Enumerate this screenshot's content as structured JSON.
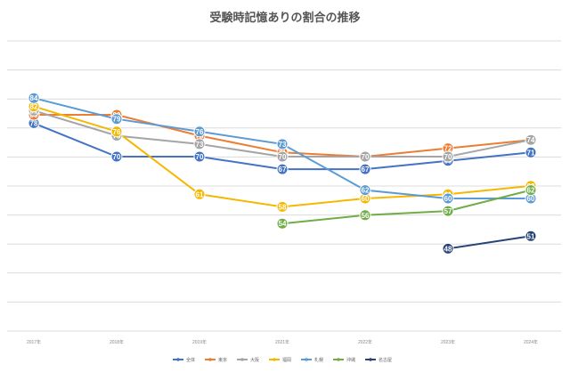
{
  "chart_data": {
    "type": "line",
    "title": "受験時記憶ありの割合の推移",
    "categories": [
      "2017年",
      "2018年",
      "2019年",
      "2021年",
      "2022年",
      "2023年",
      "2024年"
    ],
    "ylim": [
      0,
      100
    ],
    "grid": true,
    "legend_position": "bottom",
    "series": [
      {
        "name": "全体",
        "color": "#4472c4",
        "values": [
          78,
          70,
          70,
          67,
          67,
          69,
          71
        ],
        "labels": [
          "78",
          "70",
          "70",
          "67",
          "67",
          "69",
          "71"
        ]
      },
      {
        "name": "東京",
        "color": "#ed7d31",
        "values": [
          80,
          80,
          75,
          71,
          70,
          72,
          74
        ],
        "labels": [
          "80",
          "80",
          "75",
          "71",
          "70",
          "72",
          "74"
        ]
      },
      {
        "name": "大阪",
        "color": "#a5a5a5",
        "values": [
          81,
          75,
          73,
          70,
          70,
          70,
          74
        ],
        "labels": [
          "81",
          "75",
          "73",
          "70",
          "70",
          "70",
          "74"
        ]
      },
      {
        "name": "福岡",
        "color": "#f5b800",
        "values": [
          82,
          76,
          61,
          58,
          60,
          61,
          63
        ],
        "labels": [
          "82",
          "76",
          "61",
          "58",
          "60",
          "61",
          "63"
        ]
      },
      {
        "name": "札幌",
        "color": "#5b9bd5",
        "values": [
          84,
          79,
          76,
          73,
          62,
          60,
          60
        ],
        "labels": [
          "84",
          "79",
          "76",
          "73",
          "62",
          "60",
          "60"
        ]
      },
      {
        "name": "沖縄",
        "color": "#70ad47",
        "values": [
          null,
          null,
          null,
          54,
          56,
          57,
          62
        ],
        "labels": [
          "",
          "",
          "",
          "54",
          "56",
          "57",
          "62"
        ]
      },
      {
        "name": "名古屋",
        "color": "#264478",
        "values": [
          null,
          null,
          null,
          null,
          null,
          48,
          51
        ],
        "labels": [
          "",
          "",
          "",
          "",
          "",
          "48",
          "51"
        ]
      }
    ]
  }
}
